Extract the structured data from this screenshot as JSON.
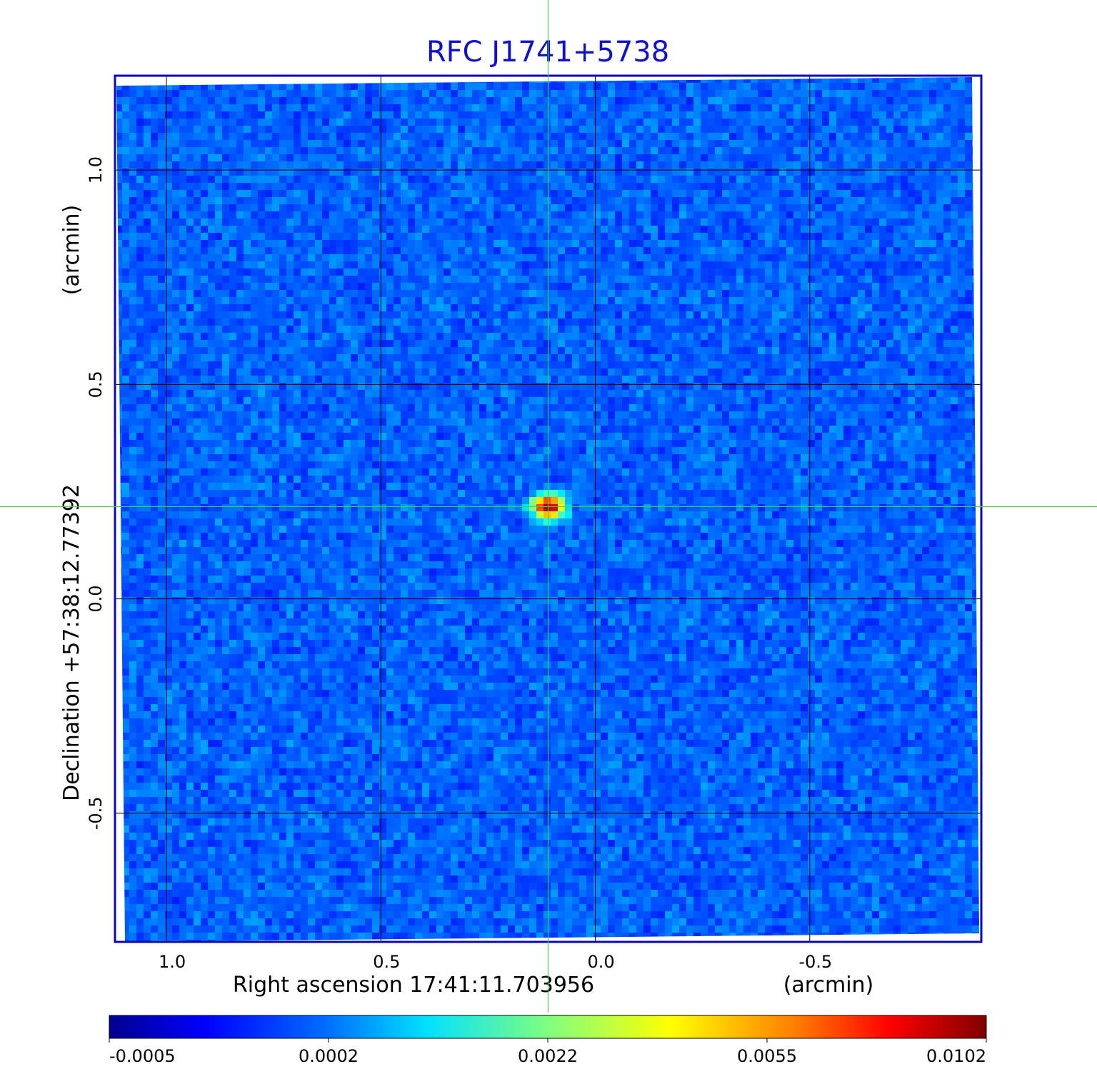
{
  "chart_data": {
    "type": "heatmap",
    "title": "RFC J1741+5738",
    "xlabel": "Right ascension  17:41:11.703956",
    "xunit": "(arcmin)",
    "ylabel": "Declination  +57:38:12.77392",
    "yunit": "(arcmin)",
    "x_ticks": [
      "1.0",
      "0.5",
      "0.0",
      "-0.5"
    ],
    "x_tick_values": [
      1.0,
      0.5,
      0.0,
      -0.5
    ],
    "y_ticks": [
      "1.0",
      "0.5",
      "0.0",
      "-0.5"
    ],
    "y_tick_values": [
      1.0,
      0.5,
      0.0,
      -0.5
    ],
    "xlim": [
      1.12,
      -0.9
    ],
    "ylim": [
      -0.8,
      1.22
    ],
    "grid": true,
    "colormap": "jet",
    "colorbar": {
      "ticks": [
        "-0.0005",
        "0.0002",
        "0.0022",
        "0.0055",
        "0.0102"
      ],
      "values": [
        -0.0005,
        0.0002,
        0.0022,
        0.0055,
        0.0102
      ]
    },
    "source": {
      "x": 0.11,
      "y": 0.215,
      "peak": 0.0102
    },
    "crosshair": {
      "x": 0.11,
      "y": 0.215,
      "color": "#00dd00"
    },
    "colors": {
      "title": "#1010d0",
      "frame": "#0a0ab4",
      "grid": "#000000",
      "crosshair": "#33dd33"
    }
  }
}
